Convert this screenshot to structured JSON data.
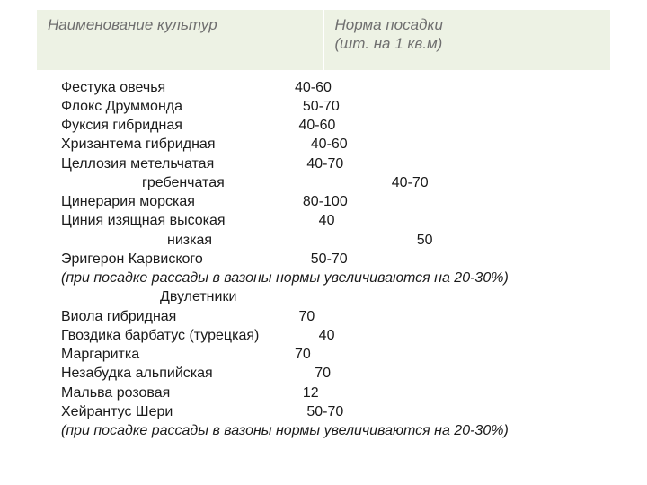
{
  "header": {
    "col1": "Наименование культур",
    "col2_line1": "Норма посадки",
    "col2_line2": "(шт. на 1 кв.м)"
  },
  "rows": [
    {
      "name": "Фестука овечья",
      "norm": "40-60",
      "pad": ""
    },
    {
      "name": "Флокс Друммонда",
      "norm": "50-70",
      "pad": "  "
    },
    {
      "name": "Фуксия гибридная",
      "norm": "40-60",
      "pad": " "
    },
    {
      "name": "Хризантема гибридная",
      "norm": "40-60",
      "pad": "    "
    },
    {
      "name": "Целлозия метельчатая",
      "norm": "40-70",
      "pad": "   "
    },
    {
      "name": "гребенчатая",
      "norm": "40-70",
      "pad": "    ",
      "indent": "indent1"
    },
    {
      "name": "Цинерария морская",
      "norm": "80-100",
      "pad": "  "
    },
    {
      "name": "Циния изящная высокая",
      "norm": "40",
      "pad": "      "
    },
    {
      "name": "низкая",
      "norm": "50",
      "pad": "    ",
      "indent": "indent2"
    },
    {
      "name": "Эригерон Карвиского",
      "norm": "50-70",
      "pad": "    "
    }
  ],
  "note1": "(при посадке рассады в вазоны нормы увеличиваются на 20-30%)",
  "section": "Двулетники",
  "rows2": [
    {
      "name": "Виола гибридная",
      "norm": "70",
      "pad": " "
    },
    {
      "name": "Гвоздика барбатус (турецкая)",
      "norm": "40",
      "pad": "      "
    },
    {
      "name": "Маргаритка",
      "norm": "70",
      "pad": ""
    },
    {
      "name": "Незабудка альпийская",
      "norm": "70",
      "pad": "     "
    },
    {
      "name": "Мальва розовая",
      "norm": "12",
      "pad": "  "
    },
    {
      "name": "Хейрантус Шери",
      "norm": "50-70",
      "pad": "   "
    }
  ],
  "note2": "(при посадке рассады в вазоны нормы увеличиваются на 20-30%)",
  "style": {
    "header_bg": "#edf2e4",
    "header_text": "#6f6f6f",
    "body_text": "#1a1a1a",
    "header_fontsize": 17,
    "body_fontsize": 16
  }
}
